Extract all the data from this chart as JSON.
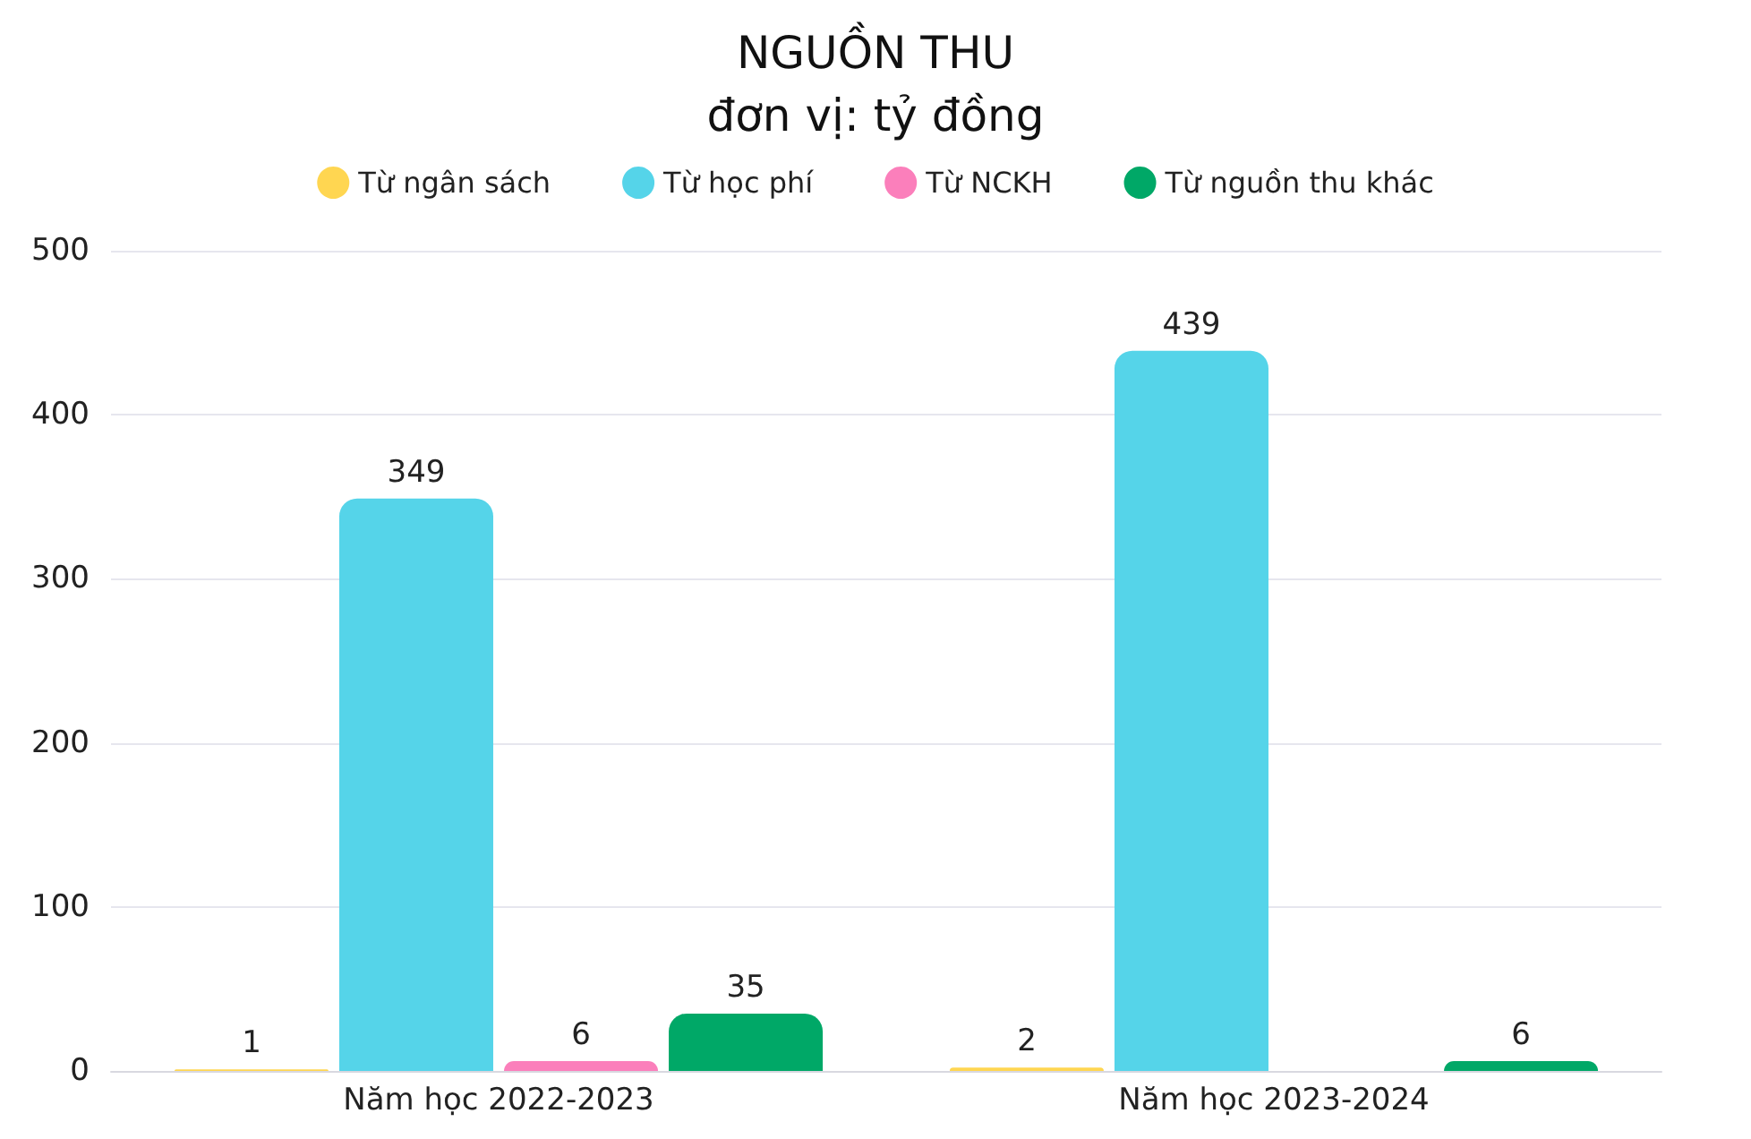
{
  "chart_data": {
    "type": "bar",
    "title": "NGUỒN THU",
    "subtitle": "đơn vị: tỷ đồng",
    "categories": [
      "Năm học 2022-2023",
      "Năm học 2023-2024"
    ],
    "series": [
      {
        "name": "Từ ngân sách",
        "color": "#ffd651",
        "values": [
          1,
          2
        ]
      },
      {
        "name": "Từ học phí",
        "color": "#55d4e9",
        "values": [
          349,
          439
        ]
      },
      {
        "name": "Từ NCKH",
        "color": "#fb7fbb",
        "values": [
          6,
          null
        ]
      },
      {
        "name": "Từ nguồn thu khác",
        "color": "#00a867",
        "values": [
          35,
          6
        ]
      }
    ],
    "ylim": [
      0,
      500
    ],
    "yticks": [
      0,
      100,
      200,
      300,
      400,
      500
    ],
    "grid": "y",
    "legend": "top",
    "data_labels": true
  }
}
